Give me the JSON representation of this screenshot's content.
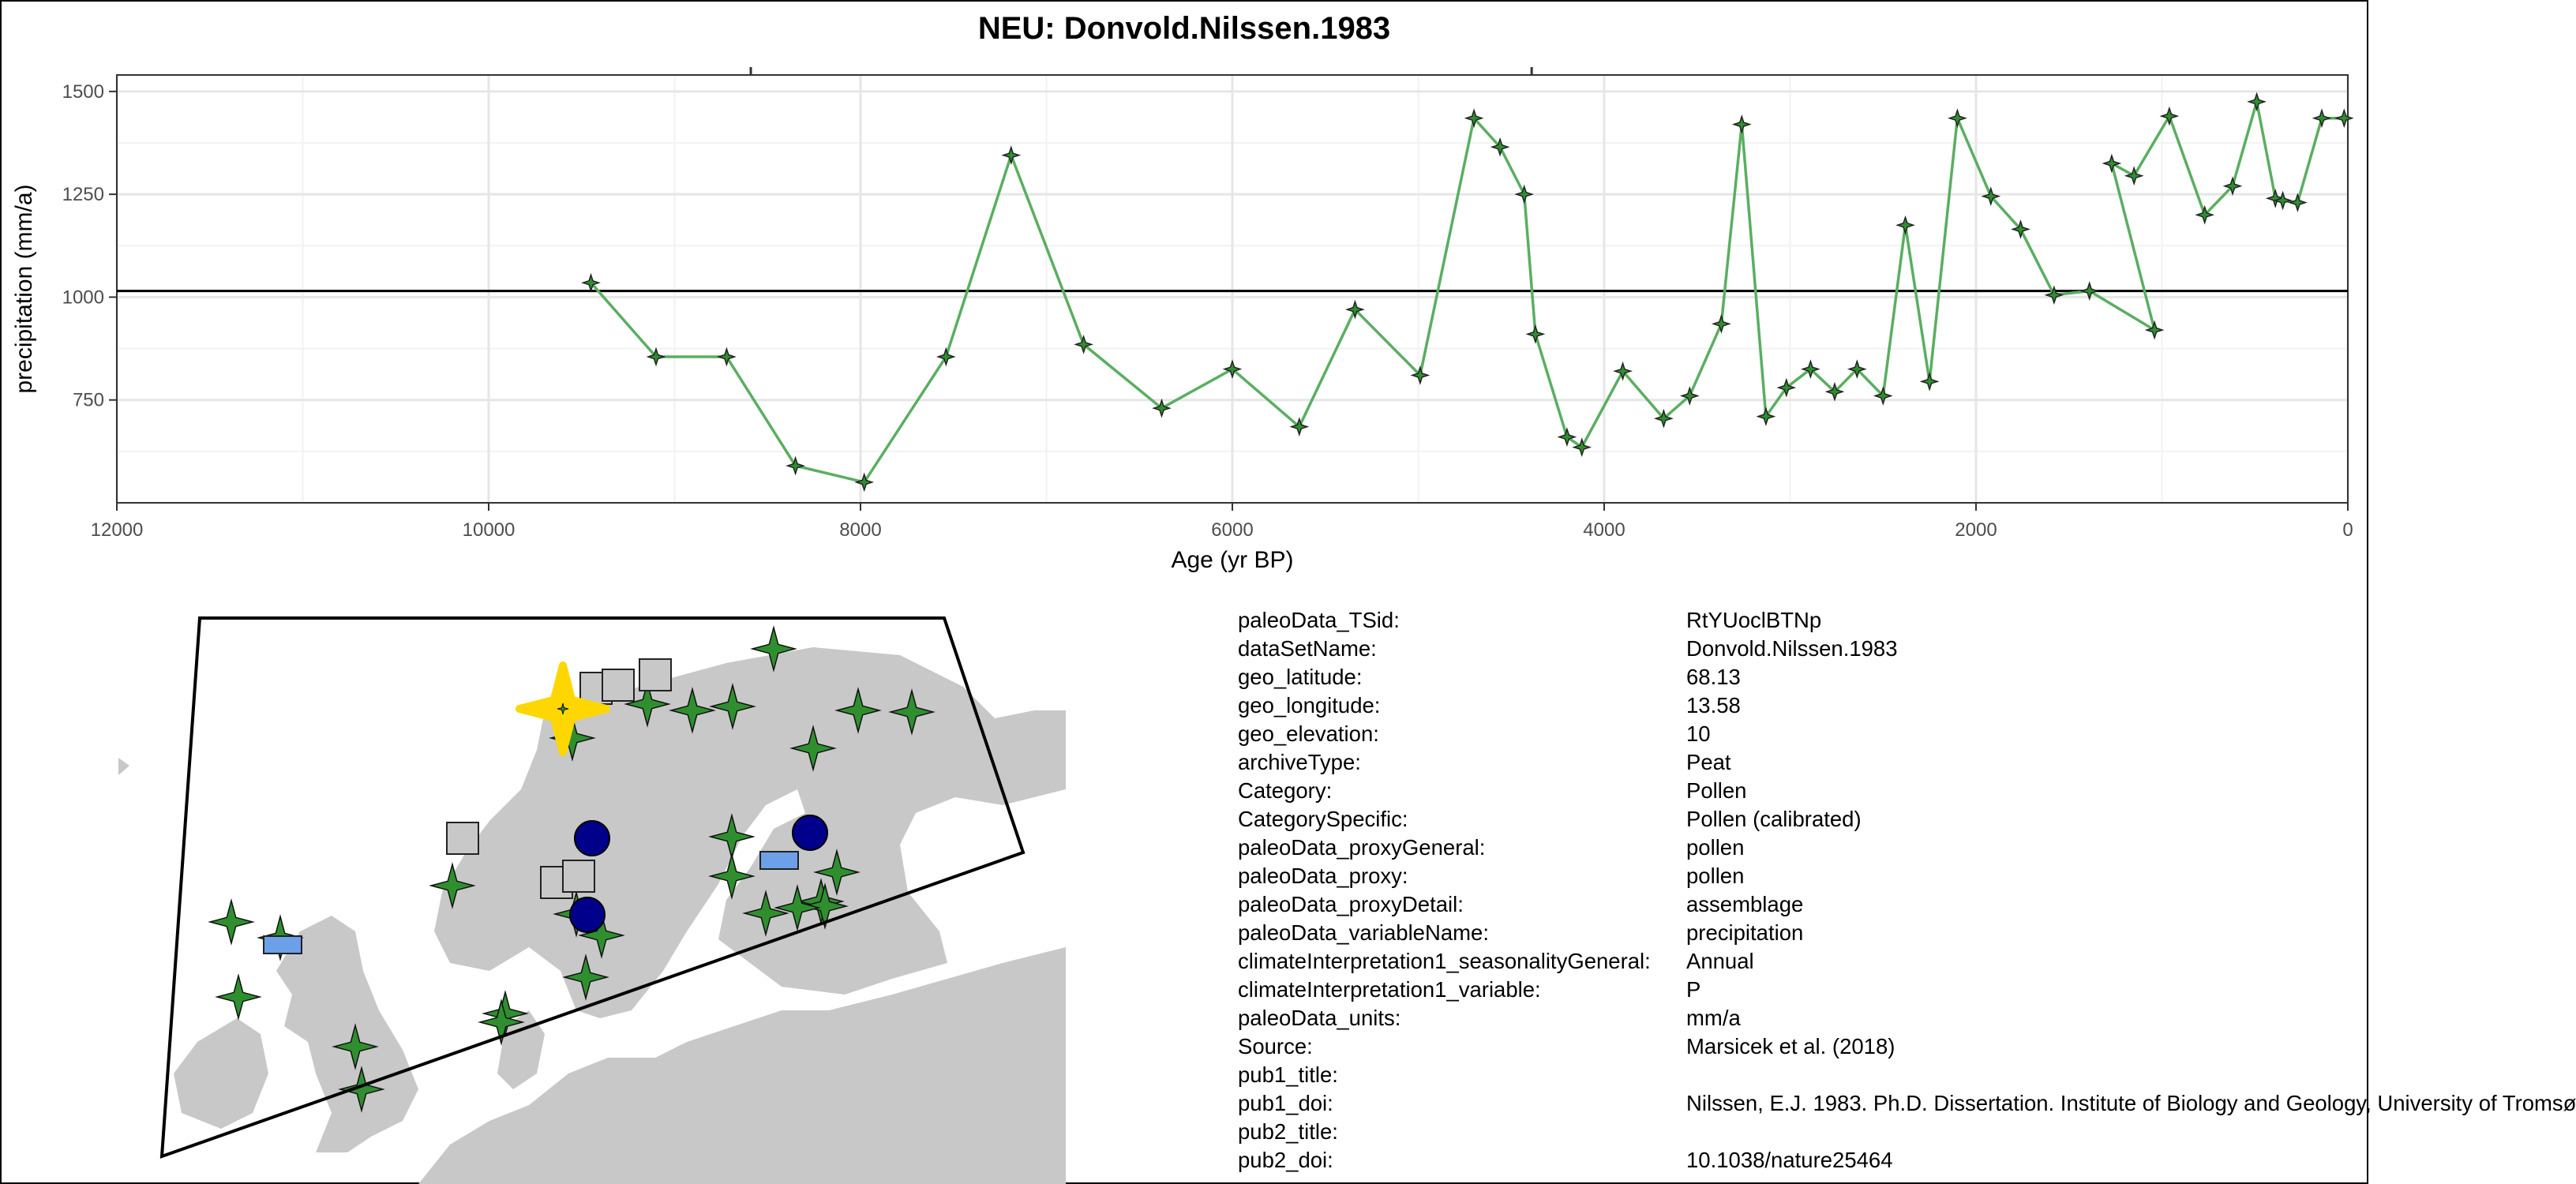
{
  "chart_data": {
    "type": "line",
    "title": "NEU: Donvold.Nilssen.1983",
    "xlabel": "Age (yr BP)",
    "ylabel": "precipitation (mm/a)",
    "xlim": [
      12000,
      0
    ],
    "ylim": [
      500,
      1540
    ],
    "x_reversed": true,
    "x_ticks": [
      12000,
      10000,
      8000,
      6000,
      4000,
      2000,
      0
    ],
    "y_ticks": [
      750,
      1000,
      1250,
      1500
    ],
    "reference_line_y": 1015,
    "grid": true,
    "series": [
      {
        "color": "#5aae61",
        "x": [
          9450,
          9100,
          8720,
          8350,
          7980,
          7540,
          7190,
          6800,
          6380,
          6000,
          5640,
          5340,
          4990,
          4700,
          4560,
          4430,
          4370,
          4200,
          4120,
          3900,
          3680,
          3540,
          3370,
          3260,
          3130,
          3020,
          2890,
          2760,
          2640,
          2500,
          2380,
          2250,
          2100,
          1920,
          1760,
          1580,
          1390,
          1040,
          1270,
          1150,
          960,
          770,
          620,
          490,
          390,
          350,
          270,
          140,
          20
        ],
        "y": [
          1035,
          855,
          855,
          590,
          550,
          855,
          1345,
          885,
          730,
          825,
          685,
          970,
          810,
          1435,
          1365,
          1250,
          910,
          660,
          635,
          820,
          705,
          760,
          935,
          1420,
          710,
          780,
          825,
          770,
          825,
          760,
          1175,
          795,
          1435,
          1245,
          1165,
          1005,
          1015,
          920,
          1325,
          1295,
          1440,
          1200,
          1270,
          1475,
          1240,
          1235,
          1230,
          1435,
          1435
        ]
      }
    ]
  },
  "map": {
    "site_color": "#ffd700",
    "marker_colors": {
      "pollen": "#2f8f2f",
      "circle": "#00008b",
      "square": "#c8c8c8",
      "rect": "#6ca0e8",
      "land": "#c8c8c8"
    }
  },
  "metadata": [
    {
      "key": "paleoData_TSid:",
      "value": "RtYUoclBTNp"
    },
    {
      "key": "dataSetName:",
      "value": "Donvold.Nilssen.1983"
    },
    {
      "key": "geo_latitude:",
      "value": "68.13"
    },
    {
      "key": "geo_longitude:",
      "value": "13.58"
    },
    {
      "key": "geo_elevation:",
      "value": "10"
    },
    {
      "key": "archiveType:",
      "value": "Peat"
    },
    {
      "key": "Category:",
      "value": "Pollen"
    },
    {
      "key": "CategorySpecific:",
      "value": "Pollen (calibrated)"
    },
    {
      "key": "paleoData_proxyGeneral:",
      "value": "pollen"
    },
    {
      "key": "paleoData_proxy:",
      "value": "pollen"
    },
    {
      "key": "paleoData_proxyDetail:",
      "value": "assemblage"
    },
    {
      "key": "paleoData_variableName:",
      "value": "precipitation"
    },
    {
      "key": "climateInterpretation1_seasonalityGeneral:",
      "value": "Annual"
    },
    {
      "key": "climateInterpretation1_variable:",
      "value": "P"
    },
    {
      "key": "paleoData_units:",
      "value": "mm/a"
    },
    {
      "key": "Source:",
      "value": "Marsicek et al. (2018)"
    },
    {
      "key": "pub1_title:",
      "value": ""
    },
    {
      "key": "pub1_doi:",
      "value": "Nilssen, E.J. 1983. Ph.D. Dissertation. Institute of Biology and Geology, University of Tromsø"
    },
    {
      "key": "pub2_title:",
      "value": ""
    },
    {
      "key": "pub2_doi:",
      "value": "10.1038/nature25464"
    }
  ]
}
